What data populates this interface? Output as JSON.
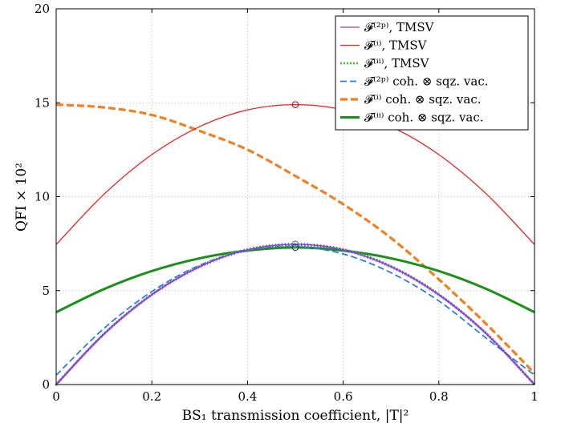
{
  "chart_data": {
    "type": "line",
    "xlabel": "BS₁ transmission coefficient, |T|²",
    "ylabel": "QFI × 10²",
    "xlim": [
      0,
      1
    ],
    "ylim": [
      0,
      20
    ],
    "x_ticks": [
      "0",
      "0.2",
      "0.4",
      "0.6",
      "0.8",
      "1"
    ],
    "y_ticks": [
      "0",
      "5",
      "10",
      "15",
      "20"
    ],
    "grid": "dotted",
    "legend_position": "top-right",
    "series": [
      {
        "name": "𝓕⁽²ᵖ⁾,  TMSV",
        "color": "#8b3fd9",
        "style": "solid",
        "marker": "plus",
        "x": [
          0,
          0.1,
          0.2,
          0.3,
          0.4,
          0.5,
          0.6,
          0.7,
          0.8,
          0.9,
          1
        ],
        "y": [
          0,
          2.69,
          4.78,
          6.27,
          7.17,
          7.47,
          7.17,
          6.27,
          4.78,
          2.69,
          0
        ]
      },
      {
        "name": "𝓕⁽ⁱ⁾,  TMSV",
        "color": "#e8201e",
        "style": "solid",
        "x": [
          0,
          0.1,
          0.2,
          0.3,
          0.4,
          0.5,
          0.6,
          0.7,
          0.8,
          0.9,
          1
        ],
        "y": [
          7.45,
          10.13,
          12.24,
          13.73,
          14.62,
          14.9,
          14.62,
          13.73,
          12.24,
          10.13,
          7.45
        ]
      },
      {
        "name": "𝓕⁽ⁱⁱ⁾,  TMSV",
        "color": "#3cc93c",
        "style": "dotted",
        "x": [
          0,
          0.1,
          0.2,
          0.3,
          0.4,
          0.5,
          0.6,
          0.7,
          0.8,
          0.9,
          1
        ],
        "y": [
          0,
          2.7,
          4.8,
          6.3,
          7.2,
          7.42,
          7.2,
          6.3,
          4.8,
          2.7,
          0
        ]
      },
      {
        "name": "𝓕⁽²ᵖ⁾ coh. ⊗ sqz. vac.",
        "color": "#2a7fdc",
        "style": "dashed",
        "x": [
          0,
          0.1,
          0.2,
          0.3,
          0.4,
          0.5,
          0.6,
          0.7,
          0.8,
          0.9,
          1
        ],
        "y": [
          0.5,
          2.99,
          4.95,
          6.35,
          7.15,
          7.35,
          6.95,
          5.95,
          4.45,
          2.45,
          0.5
        ]
      },
      {
        "name": "𝓕⁽ⁱ⁾ coh. ⊗ sqz. vac.",
        "color": "#f08020",
        "style": "dashed-thick",
        "x": [
          0,
          0.1,
          0.2,
          0.3,
          0.4,
          0.5,
          0.6,
          0.7,
          0.8,
          0.9,
          1
        ],
        "y": [
          14.9,
          14.75,
          14.35,
          13.5,
          12.5,
          11.1,
          9.6,
          7.8,
          5.6,
          3.2,
          0.6
        ]
      },
      {
        "name": "𝓕⁽ⁱⁱ⁾ coh. ⊗ sqz. vac.",
        "color": "#199119",
        "style": "solid-thick",
        "x": [
          0,
          0.1,
          0.2,
          0.3,
          0.4,
          0.5,
          0.6,
          0.7,
          0.8,
          0.9,
          1
        ],
        "y": [
          3.85,
          5.08,
          6.04,
          6.72,
          7.13,
          7.3,
          7.13,
          6.72,
          6.04,
          5.08,
          3.85
        ]
      }
    ],
    "annotations": [
      {
        "type": "circle-marker",
        "x": 0.5,
        "y": 14.9,
        "color": "#b0202a"
      },
      {
        "type": "circle-marker",
        "x": 0.5,
        "y": 7.47,
        "color": "#777777"
      },
      {
        "type": "circle-marker",
        "x": 0.5,
        "y": 7.3,
        "color": "#1c3f7a"
      }
    ]
  }
}
